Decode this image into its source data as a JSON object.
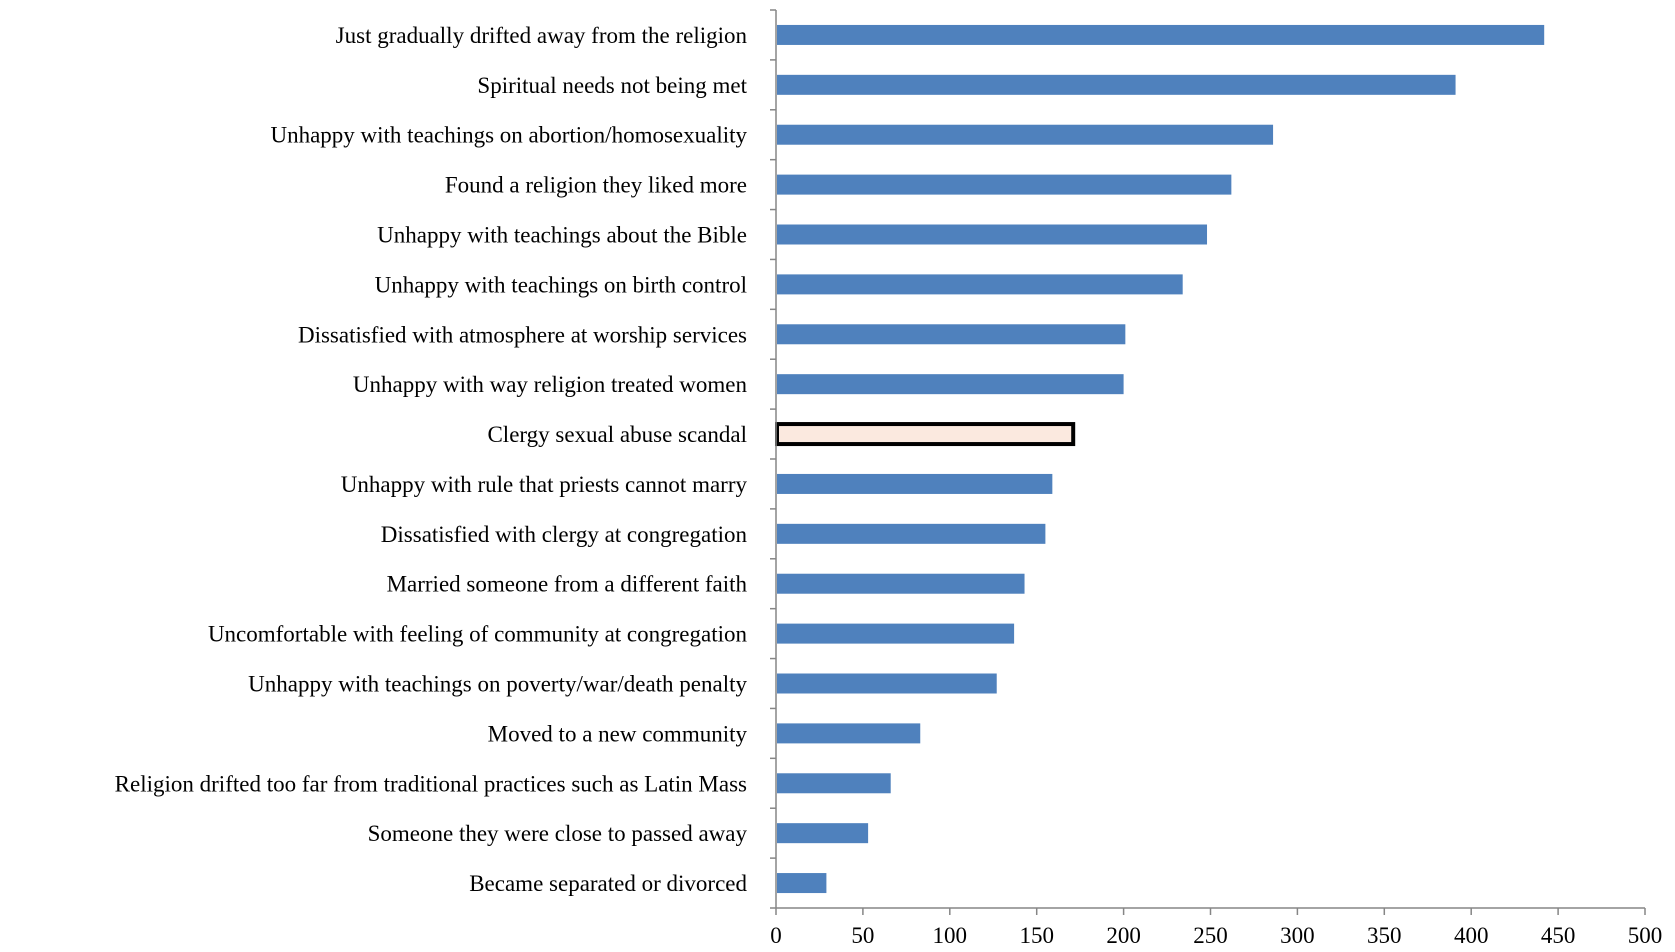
{
  "chart_data": {
    "type": "bar",
    "orientation": "horizontal",
    "categories": [
      "Just gradually drifted away from the religion",
      "Spiritual needs not being met",
      "Unhappy with teachings on abortion/homosexuality",
      "Found a religion they liked more",
      "Unhappy with teachings about the Bible",
      "Unhappy with teachings on birth control",
      "Dissatisfied with atmosphere at worship services",
      "Unhappy with way religion treated women",
      "Clergy sexual abuse scandal",
      "Unhappy with rule that priests cannot marry",
      "Dissatisfied with clergy at congregation",
      "Married someone from a different faith",
      "Uncomfortable with feeling of community at congregation",
      "Unhappy with teachings on poverty/war/death penalty",
      "Moved to a new community",
      "Religion drifted too far from traditional practices such as Latin Mass",
      "Someone they were close to passed away",
      "Became separated or divorced"
    ],
    "values": [
      442,
      391,
      286,
      262,
      248,
      234,
      201,
      200,
      171,
      159,
      155,
      143,
      137,
      127,
      83,
      66,
      53,
      29
    ],
    "highlighted_category": "Clergy sexual abuse scandal",
    "xlim": [
      0,
      500
    ],
    "x_ticks": [
      0,
      50,
      100,
      150,
      200,
      250,
      300,
      350,
      400,
      450,
      500
    ],
    "title": "",
    "xlabel": "",
    "ylabel": "",
    "grid": false,
    "legend": "none",
    "colors": {
      "bar": "#4f81bd",
      "highlight_fill": "#fbe9df",
      "highlight_stroke": "#000000",
      "axis": "#868686",
      "text": "#000000"
    }
  }
}
